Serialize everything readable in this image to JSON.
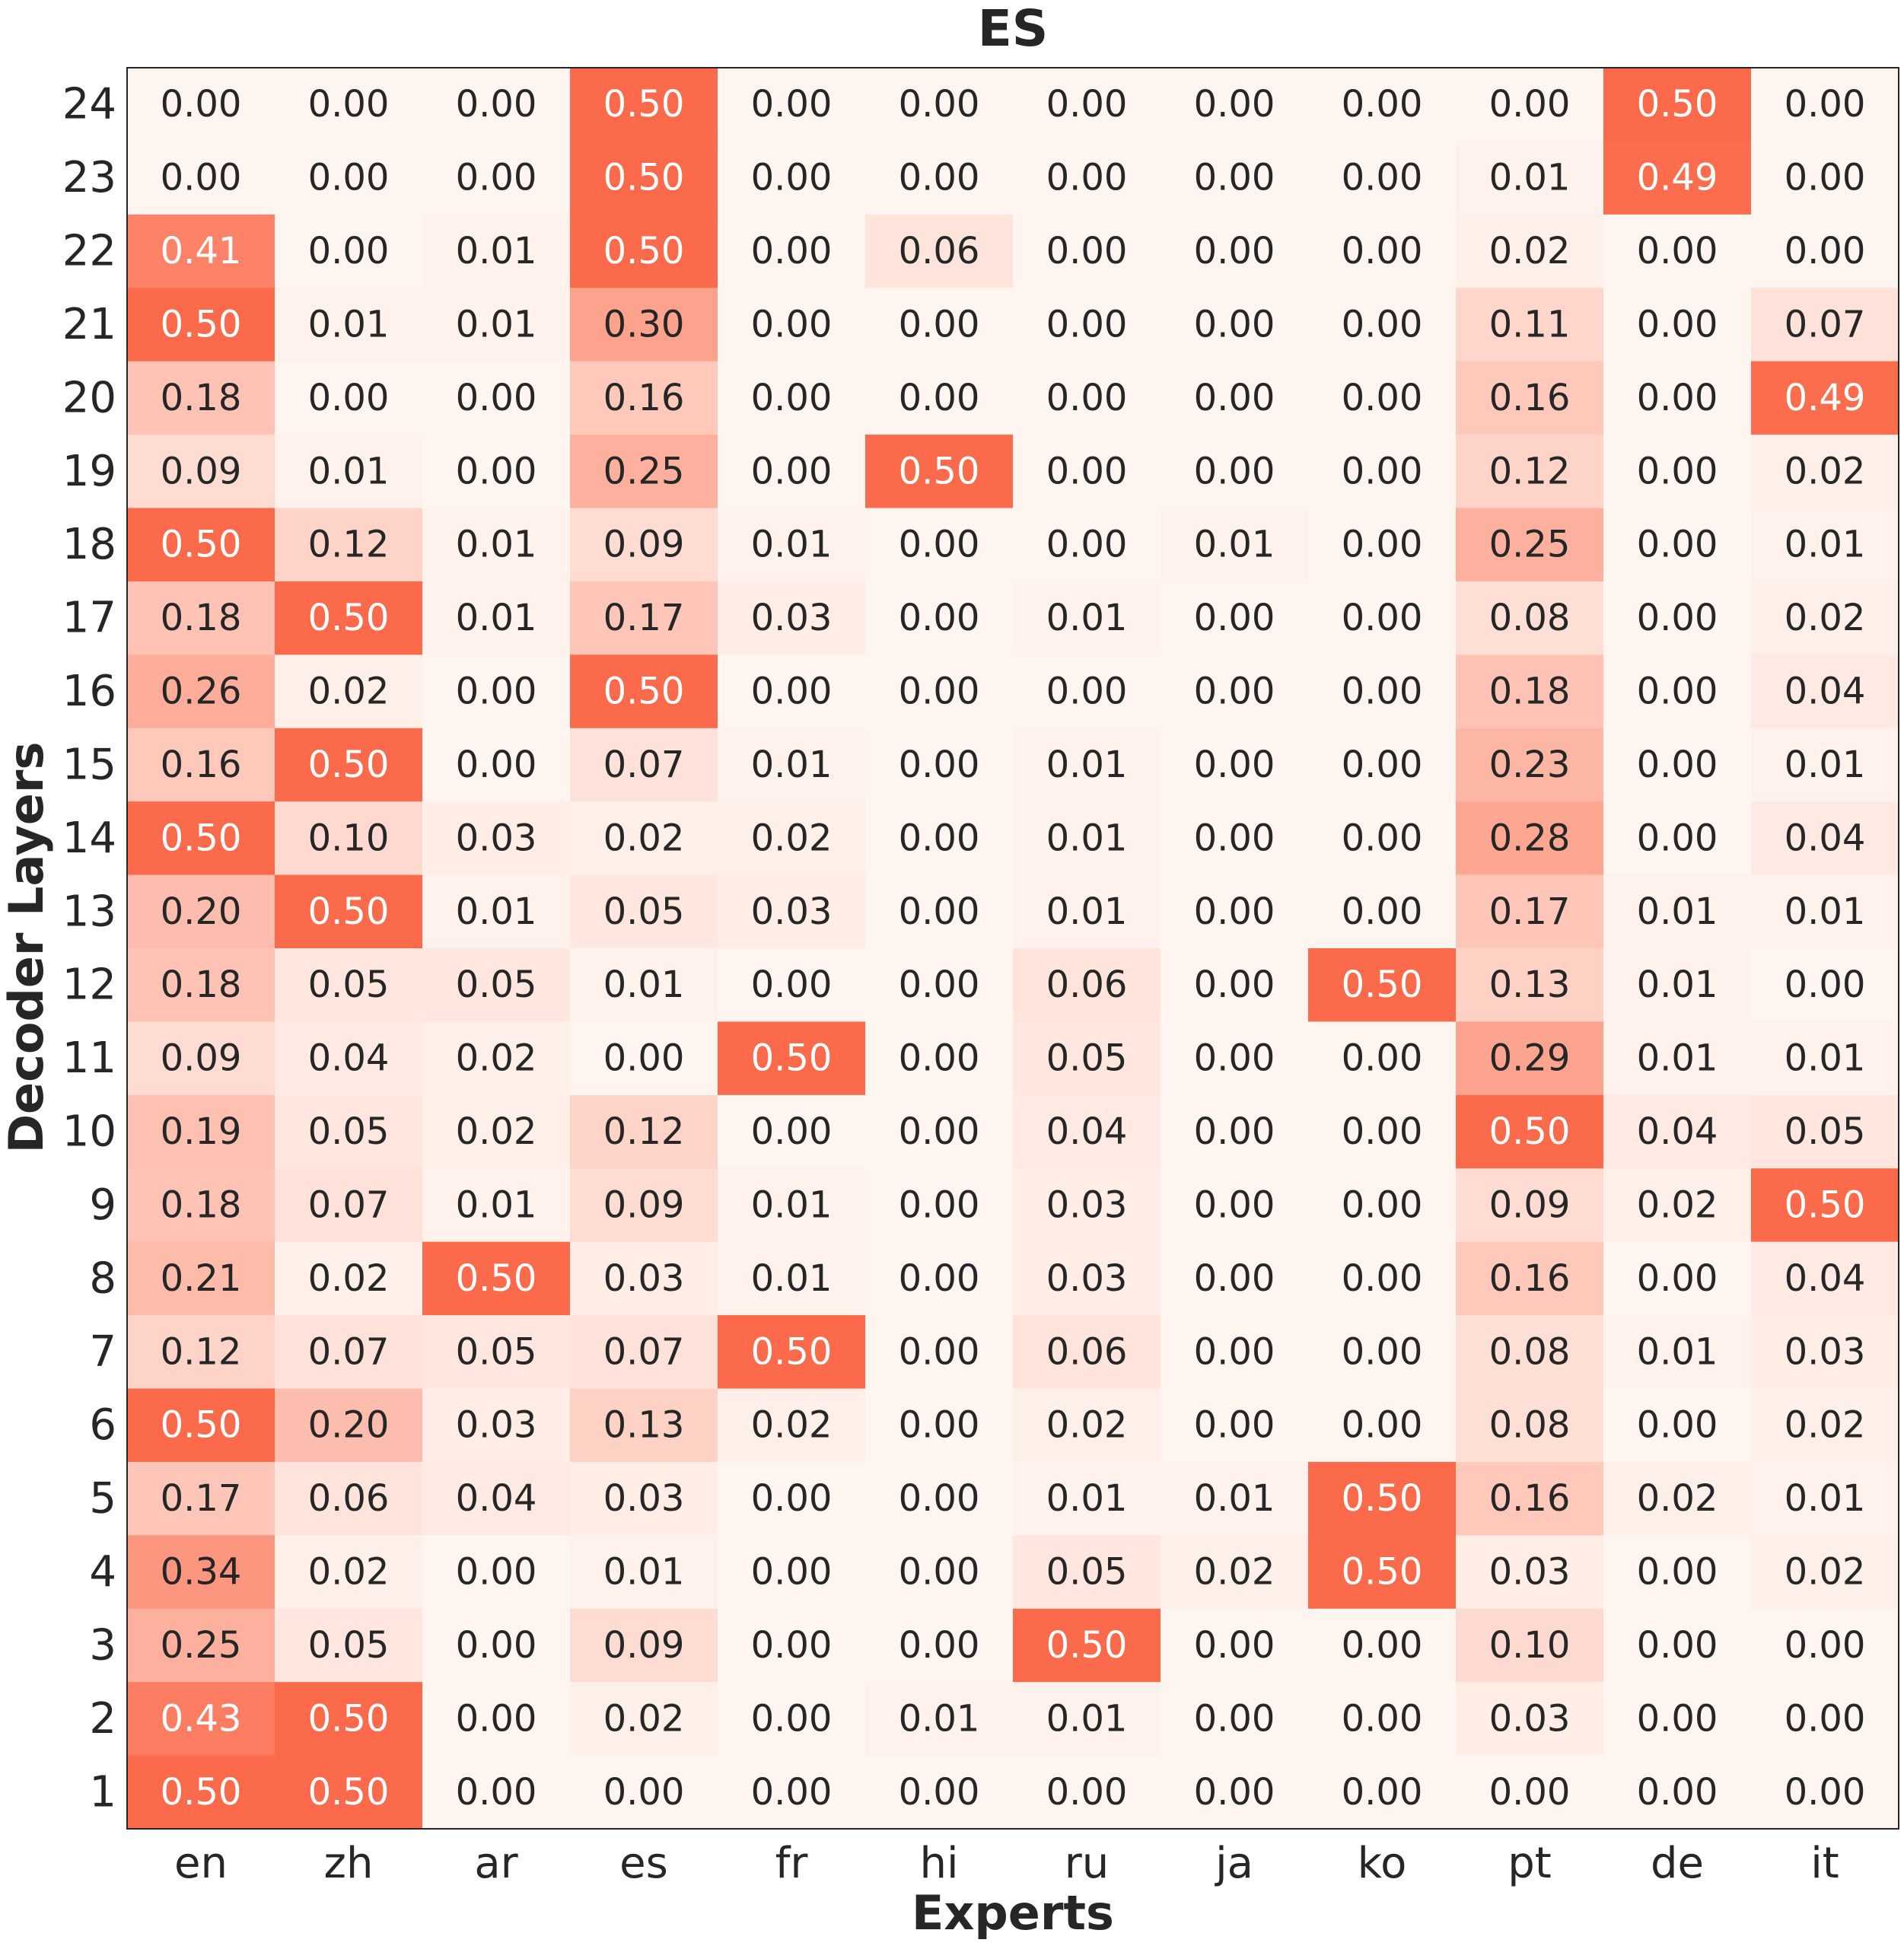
{
  "chart_data": {
    "type": "heatmap",
    "title": "ES",
    "xlabel": "Experts",
    "ylabel": "Decoder Layers",
    "x_categories": [
      "en",
      "zh",
      "ar",
      "es",
      "fr",
      "hi",
      "ru",
      "ja",
      "ko",
      "pt",
      "de",
      "it"
    ],
    "y_categories": [
      "24",
      "23",
      "22",
      "21",
      "20",
      "19",
      "18",
      "17",
      "16",
      "15",
      "14",
      "13",
      "12",
      "11",
      "10",
      "9",
      "8",
      "7",
      "6",
      "5",
      "4",
      "3",
      "2",
      "1"
    ],
    "values": [
      [
        0.0,
        0.0,
        0.0,
        0.5,
        0.0,
        0.0,
        0.0,
        0.0,
        0.0,
        0.0,
        0.5,
        0.0
      ],
      [
        0.0,
        0.0,
        0.0,
        0.5,
        0.0,
        0.0,
        0.0,
        0.0,
        0.0,
        0.01,
        0.49,
        0.0
      ],
      [
        0.41,
        0.0,
        0.01,
        0.5,
        0.0,
        0.06,
        0.0,
        0.0,
        0.0,
        0.02,
        0.0,
        0.0
      ],
      [
        0.5,
        0.01,
        0.01,
        0.3,
        0.0,
        0.0,
        0.0,
        0.0,
        0.0,
        0.11,
        0.0,
        0.07
      ],
      [
        0.18,
        0.0,
        0.0,
        0.16,
        0.0,
        0.0,
        0.0,
        0.0,
        0.0,
        0.16,
        0.0,
        0.49
      ],
      [
        0.09,
        0.01,
        0.0,
        0.25,
        0.0,
        0.5,
        0.0,
        0.0,
        0.0,
        0.12,
        0.0,
        0.02
      ],
      [
        0.5,
        0.12,
        0.01,
        0.09,
        0.01,
        0.0,
        0.0,
        0.01,
        0.0,
        0.25,
        0.0,
        0.01
      ],
      [
        0.18,
        0.5,
        0.01,
        0.17,
        0.03,
        0.0,
        0.01,
        0.0,
        0.0,
        0.08,
        0.0,
        0.02
      ],
      [
        0.26,
        0.02,
        0.0,
        0.5,
        0.0,
        0.0,
        0.0,
        0.0,
        0.0,
        0.18,
        0.0,
        0.04
      ],
      [
        0.16,
        0.5,
        0.0,
        0.07,
        0.01,
        0.0,
        0.01,
        0.0,
        0.0,
        0.23,
        0.0,
        0.01
      ],
      [
        0.5,
        0.1,
        0.03,
        0.02,
        0.02,
        0.0,
        0.01,
        0.0,
        0.0,
        0.28,
        0.0,
        0.04
      ],
      [
        0.2,
        0.5,
        0.01,
        0.05,
        0.03,
        0.0,
        0.01,
        0.0,
        0.0,
        0.17,
        0.01,
        0.01
      ],
      [
        0.18,
        0.05,
        0.05,
        0.01,
        0.0,
        0.0,
        0.06,
        0.0,
        0.5,
        0.13,
        0.01,
        0.0
      ],
      [
        0.09,
        0.04,
        0.02,
        0.0,
        0.5,
        0.0,
        0.05,
        0.0,
        0.0,
        0.29,
        0.01,
        0.01
      ],
      [
        0.19,
        0.05,
        0.02,
        0.12,
        0.0,
        0.0,
        0.04,
        0.0,
        0.0,
        0.5,
        0.04,
        0.05
      ],
      [
        0.18,
        0.07,
        0.01,
        0.09,
        0.01,
        0.0,
        0.03,
        0.0,
        0.0,
        0.09,
        0.02,
        0.5
      ],
      [
        0.21,
        0.02,
        0.5,
        0.03,
        0.01,
        0.0,
        0.03,
        0.0,
        0.0,
        0.16,
        0.0,
        0.04
      ],
      [
        0.12,
        0.07,
        0.05,
        0.07,
        0.5,
        0.0,
        0.06,
        0.0,
        0.0,
        0.08,
        0.01,
        0.03
      ],
      [
        0.5,
        0.2,
        0.03,
        0.13,
        0.02,
        0.0,
        0.02,
        0.0,
        0.0,
        0.08,
        0.0,
        0.02
      ],
      [
        0.17,
        0.06,
        0.04,
        0.03,
        0.0,
        0.0,
        0.01,
        0.01,
        0.5,
        0.16,
        0.02,
        0.01
      ],
      [
        0.34,
        0.02,
        0.0,
        0.01,
        0.0,
        0.0,
        0.05,
        0.02,
        0.5,
        0.03,
        0.0,
        0.02
      ],
      [
        0.25,
        0.05,
        0.0,
        0.09,
        0.0,
        0.0,
        0.5,
        0.0,
        0.0,
        0.1,
        0.0,
        0.0
      ],
      [
        0.43,
        0.5,
        0.0,
        0.02,
        0.0,
        0.01,
        0.01,
        0.0,
        0.0,
        0.03,
        0.0,
        0.0
      ],
      [
        0.5,
        0.5,
        0.0,
        0.0,
        0.0,
        0.0,
        0.0,
        0.0,
        0.0,
        0.0,
        0.0,
        0.0
      ]
    ],
    "value_range": [
      0.0,
      0.5
    ],
    "colormap": {
      "low": "#fff5f0",
      "high": "#fb6a4a"
    },
    "cell_text_colors": {
      "dark": "#262626",
      "light": "#ffffff"
    },
    "frame_color": "#262626"
  }
}
